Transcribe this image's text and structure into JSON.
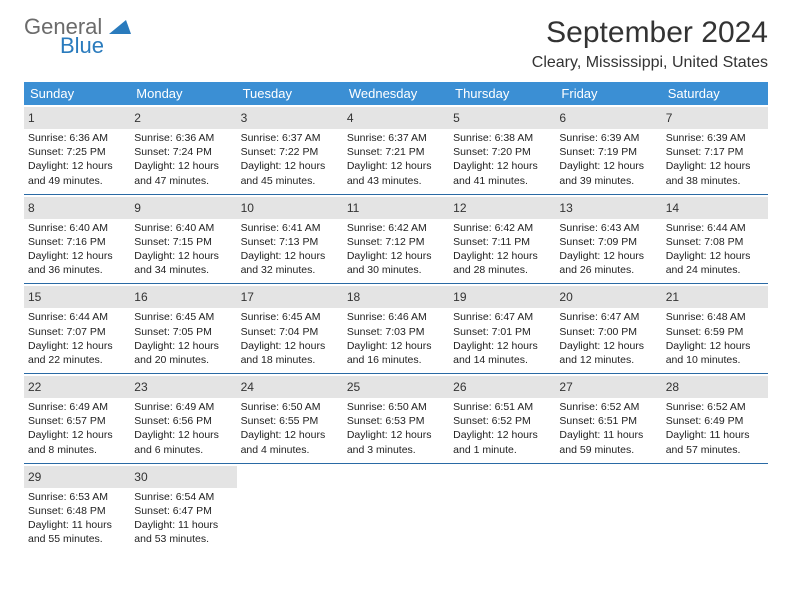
{
  "logo": {
    "text1": "General",
    "text2": "Blue"
  },
  "title": "September 2024",
  "location": "Cleary, Mississippi, United States",
  "colors": {
    "header_bg": "#3b8fd4",
    "header_text": "#ffffff",
    "daynum_bg": "#e4e4e4",
    "week_border": "#2a6aa5",
    "logo_gray": "#6b6b6b",
    "logo_blue": "#2a7bbd",
    "body_text": "#222222"
  },
  "dow": [
    "Sunday",
    "Monday",
    "Tuesday",
    "Wednesday",
    "Thursday",
    "Friday",
    "Saturday"
  ],
  "days": [
    {
      "n": "1",
      "sr": "Sunrise: 6:36 AM",
      "ss": "Sunset: 7:25 PM",
      "d1": "Daylight: 12 hours",
      "d2": "and 49 minutes."
    },
    {
      "n": "2",
      "sr": "Sunrise: 6:36 AM",
      "ss": "Sunset: 7:24 PM",
      "d1": "Daylight: 12 hours",
      "d2": "and 47 minutes."
    },
    {
      "n": "3",
      "sr": "Sunrise: 6:37 AM",
      "ss": "Sunset: 7:22 PM",
      "d1": "Daylight: 12 hours",
      "d2": "and 45 minutes."
    },
    {
      "n": "4",
      "sr": "Sunrise: 6:37 AM",
      "ss": "Sunset: 7:21 PM",
      "d1": "Daylight: 12 hours",
      "d2": "and 43 minutes."
    },
    {
      "n": "5",
      "sr": "Sunrise: 6:38 AM",
      "ss": "Sunset: 7:20 PM",
      "d1": "Daylight: 12 hours",
      "d2": "and 41 minutes."
    },
    {
      "n": "6",
      "sr": "Sunrise: 6:39 AM",
      "ss": "Sunset: 7:19 PM",
      "d1": "Daylight: 12 hours",
      "d2": "and 39 minutes."
    },
    {
      "n": "7",
      "sr": "Sunrise: 6:39 AM",
      "ss": "Sunset: 7:17 PM",
      "d1": "Daylight: 12 hours",
      "d2": "and 38 minutes."
    },
    {
      "n": "8",
      "sr": "Sunrise: 6:40 AM",
      "ss": "Sunset: 7:16 PM",
      "d1": "Daylight: 12 hours",
      "d2": "and 36 minutes."
    },
    {
      "n": "9",
      "sr": "Sunrise: 6:40 AM",
      "ss": "Sunset: 7:15 PM",
      "d1": "Daylight: 12 hours",
      "d2": "and 34 minutes."
    },
    {
      "n": "10",
      "sr": "Sunrise: 6:41 AM",
      "ss": "Sunset: 7:13 PM",
      "d1": "Daylight: 12 hours",
      "d2": "and 32 minutes."
    },
    {
      "n": "11",
      "sr": "Sunrise: 6:42 AM",
      "ss": "Sunset: 7:12 PM",
      "d1": "Daylight: 12 hours",
      "d2": "and 30 minutes."
    },
    {
      "n": "12",
      "sr": "Sunrise: 6:42 AM",
      "ss": "Sunset: 7:11 PM",
      "d1": "Daylight: 12 hours",
      "d2": "and 28 minutes."
    },
    {
      "n": "13",
      "sr": "Sunrise: 6:43 AM",
      "ss": "Sunset: 7:09 PM",
      "d1": "Daylight: 12 hours",
      "d2": "and 26 minutes."
    },
    {
      "n": "14",
      "sr": "Sunrise: 6:44 AM",
      "ss": "Sunset: 7:08 PM",
      "d1": "Daylight: 12 hours",
      "d2": "and 24 minutes."
    },
    {
      "n": "15",
      "sr": "Sunrise: 6:44 AM",
      "ss": "Sunset: 7:07 PM",
      "d1": "Daylight: 12 hours",
      "d2": "and 22 minutes."
    },
    {
      "n": "16",
      "sr": "Sunrise: 6:45 AM",
      "ss": "Sunset: 7:05 PM",
      "d1": "Daylight: 12 hours",
      "d2": "and 20 minutes."
    },
    {
      "n": "17",
      "sr": "Sunrise: 6:45 AM",
      "ss": "Sunset: 7:04 PM",
      "d1": "Daylight: 12 hours",
      "d2": "and 18 minutes."
    },
    {
      "n": "18",
      "sr": "Sunrise: 6:46 AM",
      "ss": "Sunset: 7:03 PM",
      "d1": "Daylight: 12 hours",
      "d2": "and 16 minutes."
    },
    {
      "n": "19",
      "sr": "Sunrise: 6:47 AM",
      "ss": "Sunset: 7:01 PM",
      "d1": "Daylight: 12 hours",
      "d2": "and 14 minutes."
    },
    {
      "n": "20",
      "sr": "Sunrise: 6:47 AM",
      "ss": "Sunset: 7:00 PM",
      "d1": "Daylight: 12 hours",
      "d2": "and 12 minutes."
    },
    {
      "n": "21",
      "sr": "Sunrise: 6:48 AM",
      "ss": "Sunset: 6:59 PM",
      "d1": "Daylight: 12 hours",
      "d2": "and 10 minutes."
    },
    {
      "n": "22",
      "sr": "Sunrise: 6:49 AM",
      "ss": "Sunset: 6:57 PM",
      "d1": "Daylight: 12 hours",
      "d2": "and 8 minutes."
    },
    {
      "n": "23",
      "sr": "Sunrise: 6:49 AM",
      "ss": "Sunset: 6:56 PM",
      "d1": "Daylight: 12 hours",
      "d2": "and 6 minutes."
    },
    {
      "n": "24",
      "sr": "Sunrise: 6:50 AM",
      "ss": "Sunset: 6:55 PM",
      "d1": "Daylight: 12 hours",
      "d2": "and 4 minutes."
    },
    {
      "n": "25",
      "sr": "Sunrise: 6:50 AM",
      "ss": "Sunset: 6:53 PM",
      "d1": "Daylight: 12 hours",
      "d2": "and 3 minutes."
    },
    {
      "n": "26",
      "sr": "Sunrise: 6:51 AM",
      "ss": "Sunset: 6:52 PM",
      "d1": "Daylight: 12 hours",
      "d2": "and 1 minute."
    },
    {
      "n": "27",
      "sr": "Sunrise: 6:52 AM",
      "ss": "Sunset: 6:51 PM",
      "d1": "Daylight: 11 hours",
      "d2": "and 59 minutes."
    },
    {
      "n": "28",
      "sr": "Sunrise: 6:52 AM",
      "ss": "Sunset: 6:49 PM",
      "d1": "Daylight: 11 hours",
      "d2": "and 57 minutes."
    },
    {
      "n": "29",
      "sr": "Sunrise: 6:53 AM",
      "ss": "Sunset: 6:48 PM",
      "d1": "Daylight: 11 hours",
      "d2": "and 55 minutes."
    },
    {
      "n": "30",
      "sr": "Sunrise: 6:54 AM",
      "ss": "Sunset: 6:47 PM",
      "d1": "Daylight: 11 hours",
      "d2": "and 53 minutes."
    }
  ]
}
